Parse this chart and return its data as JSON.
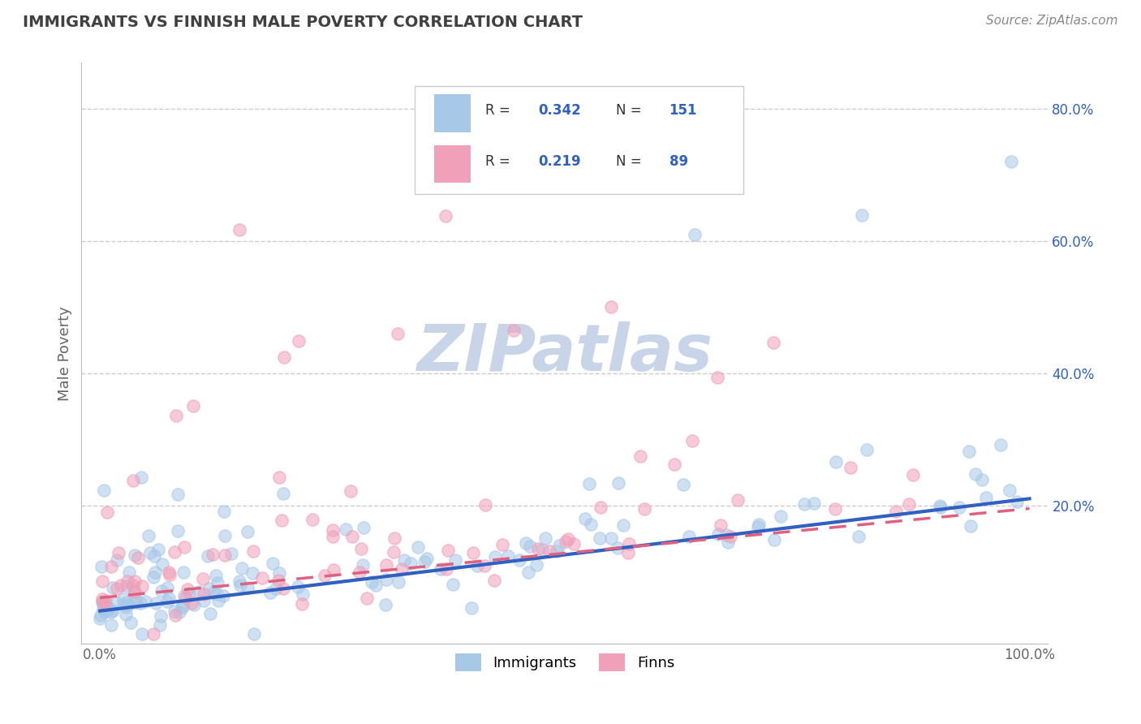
{
  "title": "IMMIGRANTS VS FINNISH MALE POVERTY CORRELATION CHART",
  "source_text": "Source: ZipAtlas.com",
  "ylabel": "Male Poverty",
  "xlabel": "",
  "xlim": [
    -0.02,
    1.02
  ],
  "ylim": [
    -0.01,
    0.87
  ],
  "ytick_positions": [
    0.2,
    0.4,
    0.6,
    0.8
  ],
  "ytick_labels": [
    "20.0%",
    "40.0%",
    "60.0%",
    "80.0%"
  ],
  "xtick_positions": [
    0.0,
    1.0
  ],
  "xtick_labels": [
    "0.0%",
    "100.0%"
  ],
  "immigrants_R": 0.342,
  "immigrants_N": 151,
  "finns_R": 0.219,
  "finns_N": 89,
  "blue_color": "#a8c8e8",
  "pink_color": "#f0a0b8",
  "blue_line_color": "#3060c0",
  "pink_line_color": "#e06080",
  "legend_R_color": "#3060c0",
  "grid_color": "#cccccc",
  "watermark_color": "#c8d4e8",
  "title_color": "#404040",
  "source_color": "#888888",
  "background_color": "#ffffff",
  "seed": 7,
  "legend_entries": [
    "Immigrants",
    "Finns"
  ],
  "trend_imm_start": 0.04,
  "trend_imm_end": 0.21,
  "trend_finn_start": 0.06,
  "trend_finn_end": 0.195
}
